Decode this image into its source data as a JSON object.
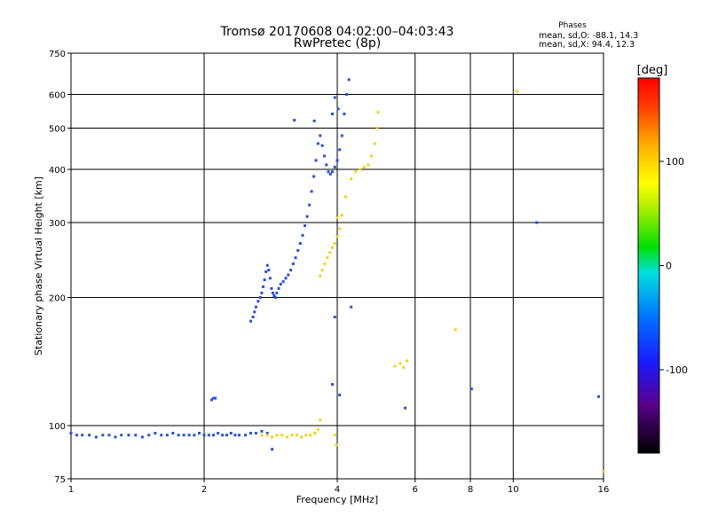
{
  "chart_data": {
    "type": "scatter",
    "title": "Tromsø 20170608 04:02:00–04:03:43",
    "subtitle": "RwPretec (8p)",
    "xlabel": "Frequency [MHz]",
    "ylabel": "Stationary phase Virtual Height [km]",
    "x_scale": "log",
    "y_scale": "log",
    "xlim": [
      1,
      16
    ],
    "ylim": [
      75,
      750
    ],
    "x_ticks": [
      1,
      2,
      4,
      6,
      8,
      10,
      16
    ],
    "y_ticks": [
      75,
      100,
      200,
      300,
      400,
      500,
      600,
      750
    ],
    "grid": true,
    "stats": {
      "title": "Phases",
      "line_o": "mean, sd,O: -88.1, 14.3",
      "line_x": "mean, sd,X:  94.4, 12.3"
    },
    "colorbar": {
      "label": "[deg]",
      "range": [
        -180,
        180
      ],
      "ticks": [
        100,
        0,
        -100
      ]
    },
    "series": [
      {
        "name": "O",
        "color": "#2a4fe0",
        "points": [
          [
            1.0,
            96
          ],
          [
            1.03,
            95
          ],
          [
            1.06,
            95
          ],
          [
            1.1,
            95
          ],
          [
            1.14,
            94
          ],
          [
            1.18,
            95
          ],
          [
            1.22,
            95
          ],
          [
            1.26,
            94
          ],
          [
            1.3,
            95
          ],
          [
            1.35,
            95
          ],
          [
            1.4,
            95
          ],
          [
            1.45,
            94
          ],
          [
            1.5,
            95
          ],
          [
            1.55,
            96
          ],
          [
            1.6,
            95
          ],
          [
            1.65,
            95
          ],
          [
            1.7,
            96
          ],
          [
            1.75,
            95
          ],
          [
            1.8,
            95
          ],
          [
            1.85,
            95
          ],
          [
            1.9,
            95
          ],
          [
            1.95,
            96
          ],
          [
            2.0,
            95
          ],
          [
            2.05,
            95
          ],
          [
            2.1,
            95
          ],
          [
            2.15,
            96
          ],
          [
            2.2,
            95
          ],
          [
            2.25,
            95
          ],
          [
            2.3,
            96
          ],
          [
            2.35,
            95
          ],
          [
            2.4,
            95
          ],
          [
            2.48,
            95
          ],
          [
            2.55,
            96
          ],
          [
            2.62,
            96
          ],
          [
            2.7,
            97
          ],
          [
            2.78,
            96
          ],
          [
            2.08,
            115
          ],
          [
            2.1,
            116
          ],
          [
            2.12,
            116
          ],
          [
            2.55,
            176
          ],
          [
            2.58,
            180
          ],
          [
            2.6,
            185
          ],
          [
            2.62,
            190
          ],
          [
            2.65,
            196
          ],
          [
            2.68,
            200
          ],
          [
            2.7,
            205
          ],
          [
            2.72,
            212
          ],
          [
            2.74,
            220
          ],
          [
            2.76,
            230
          ],
          [
            2.78,
            238
          ],
          [
            2.8,
            232
          ],
          [
            2.82,
            222
          ],
          [
            2.84,
            210
          ],
          [
            2.86,
            205
          ],
          [
            2.88,
            202
          ],
          [
            2.9,
            200
          ],
          [
            2.92,
            205
          ],
          [
            2.95,
            210
          ],
          [
            2.98,
            215
          ],
          [
            3.02,
            218
          ],
          [
            3.06,
            222
          ],
          [
            3.1,
            226
          ],
          [
            3.14,
            232
          ],
          [
            3.18,
            240
          ],
          [
            3.22,
            248
          ],
          [
            3.26,
            258
          ],
          [
            3.3,
            268
          ],
          [
            3.34,
            280
          ],
          [
            3.38,
            295
          ],
          [
            3.42,
            310
          ],
          [
            3.46,
            330
          ],
          [
            3.5,
            355
          ],
          [
            3.54,
            385
          ],
          [
            3.58,
            420
          ],
          [
            3.62,
            460
          ],
          [
            3.66,
            480
          ],
          [
            3.7,
            455
          ],
          [
            3.74,
            430
          ],
          [
            3.78,
            410
          ],
          [
            3.82,
            395
          ],
          [
            3.86,
            390
          ],
          [
            3.9,
            395
          ],
          [
            3.95,
            405
          ],
          [
            4.0,
            420
          ],
          [
            4.05,
            445
          ],
          [
            4.1,
            480
          ],
          [
            4.15,
            540
          ],
          [
            4.2,
            600
          ],
          [
            4.25,
            650
          ],
          [
            3.95,
            590
          ],
          [
            4.02,
            555
          ],
          [
            3.9,
            540
          ],
          [
            3.55,
            520
          ],
          [
            3.2,
            522
          ],
          [
            3.95,
            180
          ],
          [
            4.3,
            190
          ],
          [
            3.9,
            125
          ],
          [
            4.05,
            118
          ],
          [
            8.05,
            122
          ],
          [
            5.7,
            110
          ],
          [
            11.3,
            300
          ],
          [
            15.6,
            117
          ],
          [
            2.85,
            88
          ]
        ]
      },
      {
        "name": "X",
        "color": "#f2d21a",
        "points": [
          [
            2.7,
            95
          ],
          [
            2.78,
            95
          ],
          [
            2.85,
            94
          ],
          [
            2.92,
            95
          ],
          [
            3.0,
            95
          ],
          [
            3.08,
            94
          ],
          [
            3.16,
            95
          ],
          [
            3.24,
            95
          ],
          [
            3.32,
            94
          ],
          [
            3.4,
            95
          ],
          [
            3.48,
            95
          ],
          [
            3.56,
            96
          ],
          [
            3.62,
            98
          ],
          [
            3.66,
            103
          ],
          [
            3.66,
            225
          ],
          [
            3.7,
            232
          ],
          [
            3.75,
            240
          ],
          [
            3.8,
            248
          ],
          [
            3.85,
            255
          ],
          [
            3.9,
            262
          ],
          [
            3.95,
            268
          ],
          [
            4.0,
            278
          ],
          [
            4.05,
            290
          ],
          [
            4.1,
            312
          ],
          [
            4.18,
            345
          ],
          [
            4.3,
            380
          ],
          [
            4.4,
            395
          ],
          [
            4.5,
            400
          ],
          [
            4.6,
            405
          ],
          [
            4.7,
            410
          ],
          [
            4.78,
            430
          ],
          [
            4.86,
            460
          ],
          [
            4.92,
            500
          ],
          [
            4.95,
            545
          ],
          [
            3.95,
            95
          ],
          [
            3.98,
            90
          ],
          [
            4.0,
            308
          ],
          [
            5.4,
            138
          ],
          [
            5.55,
            140
          ],
          [
            5.65,
            137
          ],
          [
            5.75,
            142
          ],
          [
            7.4,
            168
          ],
          [
            10.2,
            610
          ],
          [
            16.0,
            78
          ]
        ]
      }
    ]
  }
}
